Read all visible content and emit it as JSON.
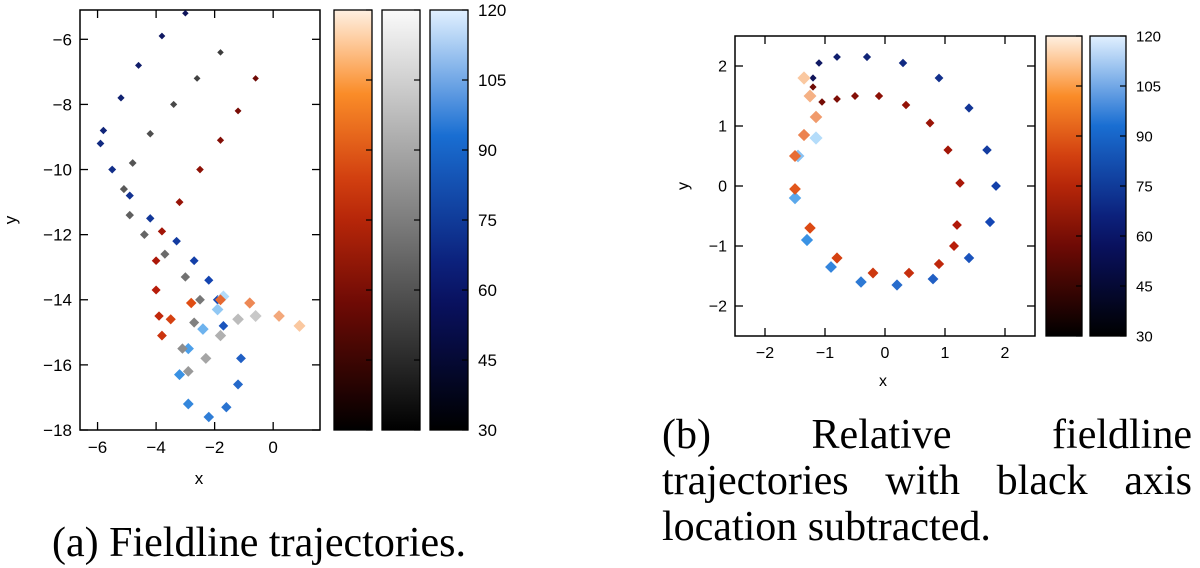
{
  "captions": {
    "a": "(a) Fieldline trajectories.",
    "b": "(b) Relative fieldline trajectories with black axis location subtracted."
  },
  "chart_data": [
    {
      "type": "scatter",
      "id": "a",
      "xlabel": "x",
      "ylabel": "y",
      "xlim": [
        -6.6,
        1.6
      ],
      "ylim": [
        -18.0,
        -5.1
      ],
      "x_ticks": [
        -6,
        -4,
        -2,
        0
      ],
      "y_ticks": [
        -6,
        -8,
        -10,
        -12,
        -14,
        -16,
        -18
      ],
      "colorbar_ticks": [
        120,
        105,
        90,
        75,
        60,
        45,
        30
      ],
      "colorbar_range": [
        30,
        120
      ],
      "colormaps": [
        "copper-orange",
        "gray",
        "blue"
      ],
      "series": [
        {
          "colormap": "blue",
          "points": [
            [
              -3.0,
              -5.2
            ],
            [
              -3.8,
              -5.9
            ],
            [
              -4.6,
              -6.8
            ],
            [
              -5.2,
              -7.8
            ],
            [
              -5.8,
              -8.8
            ],
            [
              -5.9,
              -9.2
            ],
            [
              -5.5,
              -10.0
            ],
            [
              -4.9,
              -10.8
            ],
            [
              -4.2,
              -11.5
            ],
            [
              -3.3,
              -12.2
            ],
            [
              -2.7,
              -12.8
            ],
            [
              -2.2,
              -13.4
            ],
            [
              -1.9,
              -14.0
            ],
            [
              -1.7,
              -14.8
            ],
            [
              -1.1,
              -15.8
            ],
            [
              -1.2,
              -16.6
            ],
            [
              -1.6,
              -17.3
            ],
            [
              -2.2,
              -17.6
            ],
            [
              -2.9,
              -17.2
            ],
            [
              -3.2,
              -16.3
            ],
            [
              -2.9,
              -15.5
            ],
            [
              -2.4,
              -14.9
            ],
            [
              -1.9,
              -14.3
            ],
            [
              -1.7,
              -13.9
            ]
          ]
        },
        {
          "colormap": "gray",
          "points": [
            [
              -1.8,
              -6.4
            ],
            [
              -2.6,
              -7.2
            ],
            [
              -3.4,
              -8.0
            ],
            [
              -4.2,
              -8.9
            ],
            [
              -4.8,
              -9.8
            ],
            [
              -5.1,
              -10.6
            ],
            [
              -4.9,
              -11.4
            ],
            [
              -4.4,
              -12.0
            ],
            [
              -3.7,
              -12.6
            ],
            [
              -3.0,
              -13.3
            ],
            [
              -2.5,
              -14.0
            ],
            [
              -2.7,
              -14.7
            ],
            [
              -3.1,
              -15.5
            ],
            [
              -2.9,
              -16.2
            ],
            [
              -2.3,
              -15.8
            ],
            [
              -1.8,
              -15.1
            ],
            [
              -1.2,
              -14.6
            ],
            [
              -0.6,
              -14.5
            ]
          ]
        },
        {
          "colormap": "copper-orange",
          "points": [
            [
              -0.6,
              -7.2
            ],
            [
              -1.2,
              -8.2
            ],
            [
              -1.8,
              -9.1
            ],
            [
              -2.5,
              -10.0
            ],
            [
              -3.2,
              -11.0
            ],
            [
              -3.8,
              -11.9
            ],
            [
              -4.0,
              -12.8
            ],
            [
              -4.0,
              -13.7
            ],
            [
              -3.9,
              -14.5
            ],
            [
              -3.8,
              -15.1
            ],
            [
              -3.5,
              -14.6
            ],
            [
              -2.8,
              -14.1
            ],
            [
              -1.8,
              -14.0
            ],
            [
              -0.8,
              -14.1
            ],
            [
              0.2,
              -14.5
            ],
            [
              0.9,
              -14.8
            ]
          ]
        }
      ]
    },
    {
      "type": "scatter",
      "id": "b",
      "xlabel": "x",
      "ylabel": "y",
      "xlim": [
        -2.5,
        2.5
      ],
      "ylim": [
        -2.5,
        2.5
      ],
      "x_ticks": [
        -2,
        -1,
        0,
        1,
        2
      ],
      "y_ticks": [
        2,
        1,
        0,
        -1,
        -2
      ],
      "colorbar_ticks": [
        120,
        105,
        90,
        75,
        60,
        45,
        30
      ],
      "colorbar_range": [
        30,
        120
      ],
      "colormaps": [
        "copper-orange",
        "blue"
      ],
      "series": [
        {
          "colormap": "blue",
          "points": [
            [
              -1.2,
              1.8
            ],
            [
              -1.1,
              2.05
            ],
            [
              -0.8,
              2.15
            ],
            [
              -0.3,
              2.15
            ],
            [
              0.3,
              2.05
            ],
            [
              0.9,
              1.8
            ],
            [
              1.4,
              1.3
            ],
            [
              1.7,
              0.6
            ],
            [
              1.85,
              0.0
            ],
            [
              1.75,
              -0.6
            ],
            [
              1.4,
              -1.2
            ],
            [
              0.8,
              -1.55
            ],
            [
              0.2,
              -1.65
            ],
            [
              -0.4,
              -1.6
            ],
            [
              -0.9,
              -1.35
            ],
            [
              -1.3,
              -0.9
            ],
            [
              -1.5,
              -0.2
            ],
            [
              -1.45,
              0.5
            ],
            [
              -1.15,
              0.8
            ]
          ]
        },
        {
          "colormap": "copper-orange",
          "points": [
            [
              -1.2,
              1.65
            ],
            [
              -1.05,
              1.4
            ],
            [
              -0.8,
              1.45
            ],
            [
              -0.5,
              1.5
            ],
            [
              -0.1,
              1.5
            ],
            [
              0.35,
              1.35
            ],
            [
              0.75,
              1.05
            ],
            [
              1.05,
              0.6
            ],
            [
              1.25,
              0.05
            ],
            [
              1.2,
              -0.65
            ],
            [
              1.15,
              -1.0
            ],
            [
              0.9,
              -1.3
            ],
            [
              0.4,
              -1.45
            ],
            [
              -0.2,
              -1.45
            ],
            [
              -0.8,
              -1.2
            ],
            [
              -1.25,
              -0.7
            ],
            [
              -1.5,
              -0.05
            ],
            [
              -1.5,
              0.5
            ],
            [
              -1.35,
              0.85
            ],
            [
              -1.15,
              1.15
            ],
            [
              -1.25,
              1.5
            ],
            [
              -1.35,
              1.8
            ]
          ]
        }
      ]
    }
  ]
}
